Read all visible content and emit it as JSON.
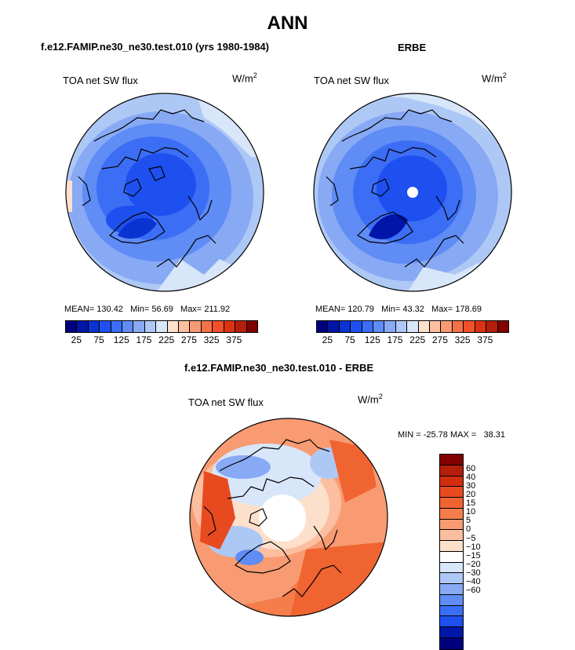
{
  "figure": {
    "title": "ANN",
    "left_panel_title": "f.e12.FAMIP.ne30_ne30.test.010 (yrs 1980-1984)",
    "right_panel_title": "ERBE",
    "diff_panel_title": "f.e12.FAMIP.ne30_ne30.test.010 - ERBE"
  },
  "panels": {
    "model": {
      "variable": "TOA net SW flux",
      "units_base": "W/m",
      "units_exp": "2",
      "mean_label": "MEAN=",
      "mean": "130.42",
      "min_label": "Min=",
      "min": "56.69",
      "max_label": "Max=",
      "max": "211.92"
    },
    "obs": {
      "variable": "TOA net SW flux",
      "units_base": "W/m",
      "units_exp": "2",
      "mean_label": "MEAN=",
      "mean": "120.79",
      "min_label": "Min=",
      "min": "43.32",
      "max_label": "Max=",
      "max": "178.69"
    },
    "diff": {
      "variable": "TOA net SW flux",
      "units_base": "W/m",
      "units_exp": "2",
      "min_label": "MIN =",
      "min": "-25.78",
      "max_label": "MAX =",
      "max": "38.31"
    }
  },
  "colors": {
    "abs_scale": [
      "#00007f",
      "#0016a8",
      "#0a33d2",
      "#1e50f0",
      "#3c6ef5",
      "#5f8cf5",
      "#88aaf5",
      "#aec8f5",
      "#d8e6fa",
      "#ffe0cc",
      "#fcc0a0",
      "#f89a73",
      "#f57248",
      "#f0502a",
      "#dc3214",
      "#b41e0a",
      "#820000"
    ],
    "diff_scale": [
      "#820000",
      "#b41e0a",
      "#d22d0f",
      "#e84a20",
      "#f06432",
      "#f57d4b",
      "#f89b72",
      "#fbbfa0",
      "#fde0cc",
      "#ffffff",
      "#d8e6fa",
      "#aec8f5",
      "#88aaf5",
      "#5f8cf5",
      "#3c6ef5",
      "#1e50f0",
      "#0016a8",
      "#00007f"
    ]
  },
  "chart_data": [
    {
      "type": "heatmap",
      "projection": "north-polar-stereographic",
      "title": "f.e12.FAMIP.ne30_ne30.test.010 (yrs 1980-1984)",
      "field": "TOA net SW flux",
      "units": "W/m^2",
      "colorbar_ticks": [
        "25",
        "75",
        "125",
        "175",
        "225",
        "275",
        "325",
        "375"
      ],
      "stats": {
        "mean": 130.42,
        "min": 56.69,
        "max": 211.92
      }
    },
    {
      "type": "heatmap",
      "projection": "north-polar-stereographic",
      "title": "ERBE",
      "field": "TOA net SW flux",
      "units": "W/m^2",
      "colorbar_ticks": [
        "25",
        "75",
        "125",
        "175",
        "225",
        "275",
        "325",
        "375"
      ],
      "stats": {
        "mean": 120.79,
        "min": 43.32,
        "max": 178.69
      }
    },
    {
      "type": "heatmap",
      "projection": "north-polar-stereographic",
      "title": "f.e12.FAMIP.ne30_ne30.test.010 - ERBE",
      "field": "TOA net SW flux",
      "units": "W/m^2",
      "colorbar_ticks": [
        "60",
        "40",
        "30",
        "20",
        "15",
        "10",
        "5",
        "0",
        "−5",
        "−10",
        "−15",
        "−20",
        "−30",
        "−40",
        "−60"
      ],
      "stats": {
        "min": -25.78,
        "max": 38.31
      }
    }
  ]
}
